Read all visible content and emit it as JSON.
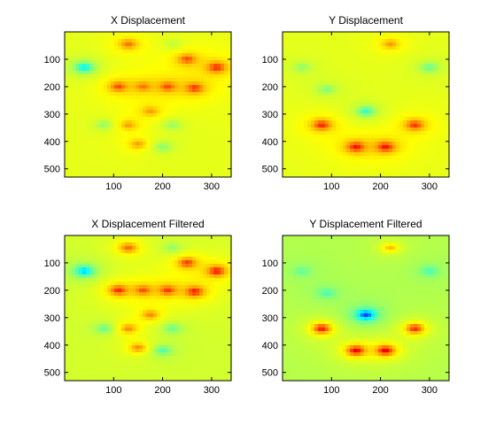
{
  "chart_data": [
    {
      "type": "heatmap",
      "title": "X Displacement",
      "xlabel": "",
      "ylabel": "",
      "xlim": [
        0,
        340
      ],
      "ylim": [
        0,
        530
      ],
      "y_reversed": true,
      "xticks": [
        100,
        200,
        300
      ],
      "yticks": [
        100,
        200,
        300,
        400,
        500
      ],
      "colormap": "jet",
      "background_value": 0.6,
      "features": [
        {
          "x": 40,
          "y": 130,
          "value": 0.3
        },
        {
          "x": 310,
          "y": 130,
          "value": 0.9
        },
        {
          "x": 250,
          "y": 100,
          "value": 0.85
        },
        {
          "x": 110,
          "y": 200,
          "value": 0.85
        },
        {
          "x": 160,
          "y": 200,
          "value": 0.8
        },
        {
          "x": 210,
          "y": 200,
          "value": 0.85
        },
        {
          "x": 265,
          "y": 205,
          "value": 0.88
        },
        {
          "x": 130,
          "y": 45,
          "value": 0.8
        },
        {
          "x": 220,
          "y": 45,
          "value": 0.55
        },
        {
          "x": 175,
          "y": 290,
          "value": 0.75
        },
        {
          "x": 80,
          "y": 340,
          "value": 0.5
        },
        {
          "x": 130,
          "y": 340,
          "value": 0.75
        },
        {
          "x": 220,
          "y": 340,
          "value": 0.5
        },
        {
          "x": 150,
          "y": 410,
          "value": 0.75
        },
        {
          "x": 200,
          "y": 420,
          "value": 0.48
        }
      ]
    },
    {
      "type": "heatmap",
      "title": "Y Displacement",
      "xlabel": "",
      "ylabel": "",
      "xlim": [
        0,
        340
      ],
      "ylim": [
        0,
        530
      ],
      "y_reversed": true,
      "xticks": [
        100,
        200,
        300
      ],
      "yticks": [
        100,
        200,
        300,
        400,
        500
      ],
      "colormap": "jet",
      "background_value": 0.6,
      "features": [
        {
          "x": 170,
          "y": 290,
          "value": 0.38
        },
        {
          "x": 80,
          "y": 340,
          "value": 0.9
        },
        {
          "x": 270,
          "y": 340,
          "value": 0.88
        },
        {
          "x": 150,
          "y": 420,
          "value": 0.93
        },
        {
          "x": 210,
          "y": 420,
          "value": 0.93
        },
        {
          "x": 300,
          "y": 130,
          "value": 0.45
        },
        {
          "x": 90,
          "y": 210,
          "value": 0.48
        },
        {
          "x": 220,
          "y": 45,
          "value": 0.75
        },
        {
          "x": 40,
          "y": 130,
          "value": 0.5
        }
      ]
    },
    {
      "type": "heatmap",
      "title": "X Displacement Filtered",
      "xlabel": "",
      "ylabel": "",
      "xlim": [
        0,
        340
      ],
      "ylim": [
        0,
        530
      ],
      "y_reversed": true,
      "xticks": [
        100,
        200,
        300
      ],
      "yticks": [
        100,
        200,
        300,
        400,
        500
      ],
      "colormap": "jet",
      "background_value": 0.58,
      "features": [
        {
          "x": 40,
          "y": 130,
          "value": 0.25
        },
        {
          "x": 310,
          "y": 130,
          "value": 0.93
        },
        {
          "x": 250,
          "y": 100,
          "value": 0.88
        },
        {
          "x": 110,
          "y": 200,
          "value": 0.9
        },
        {
          "x": 160,
          "y": 200,
          "value": 0.85
        },
        {
          "x": 210,
          "y": 200,
          "value": 0.88
        },
        {
          "x": 265,
          "y": 205,
          "value": 0.92
        },
        {
          "x": 130,
          "y": 45,
          "value": 0.82
        },
        {
          "x": 220,
          "y": 45,
          "value": 0.5
        },
        {
          "x": 175,
          "y": 290,
          "value": 0.78
        },
        {
          "x": 80,
          "y": 340,
          "value": 0.45
        },
        {
          "x": 130,
          "y": 340,
          "value": 0.78
        },
        {
          "x": 220,
          "y": 340,
          "value": 0.45
        },
        {
          "x": 150,
          "y": 410,
          "value": 0.78
        },
        {
          "x": 200,
          "y": 420,
          "value": 0.42
        }
      ]
    },
    {
      "type": "heatmap",
      "title": "Y Displacement Filtered",
      "xlabel": "",
      "ylabel": "",
      "xlim": [
        0,
        340
      ],
      "ylim": [
        0,
        530
      ],
      "y_reversed": true,
      "xticks": [
        100,
        200,
        300
      ],
      "yticks": [
        100,
        200,
        300,
        400,
        500
      ],
      "colormap": "jet",
      "background_value": 0.55,
      "features": [
        {
          "x": 170,
          "y": 290,
          "value": 0.1
        },
        {
          "x": 80,
          "y": 340,
          "value": 0.93
        },
        {
          "x": 270,
          "y": 340,
          "value": 0.9
        },
        {
          "x": 150,
          "y": 420,
          "value": 0.97
        },
        {
          "x": 210,
          "y": 420,
          "value": 0.97
        },
        {
          "x": 300,
          "y": 130,
          "value": 0.42
        },
        {
          "x": 90,
          "y": 210,
          "value": 0.42
        },
        {
          "x": 220,
          "y": 45,
          "value": 0.72
        },
        {
          "x": 40,
          "y": 130,
          "value": 0.45
        }
      ]
    }
  ]
}
